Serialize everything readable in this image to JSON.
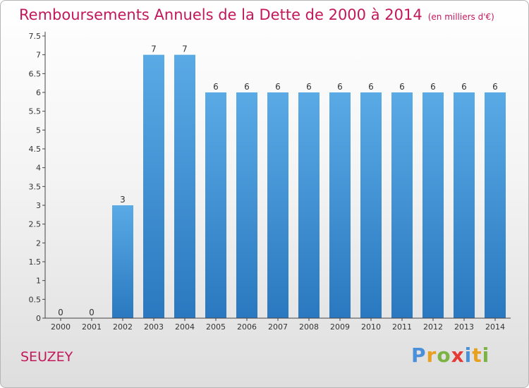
{
  "header": {
    "title": "Remboursements Annuels de la Dette de 2000 à 2014",
    "unit": "(en milliers d'€)"
  },
  "footer": {
    "commune": "SEUZEY",
    "logo_letters": [
      "P",
      "r",
      "o",
      "x",
      "i",
      "t",
      "i"
    ],
    "logo_colors": [
      "#4a90d9",
      "#e8a020",
      "#7cb342",
      "#e53935",
      "#4a90d9",
      "#e8a020",
      "#7cb342"
    ]
  },
  "colors": {
    "bar_top": "#5aaae6",
    "bar_bottom": "#2a78bf",
    "title": "#c2185b"
  },
  "chart_data": {
    "type": "bar",
    "title": "Remboursements Annuels de la Dette de 2000 à 2014",
    "categories": [
      "2000",
      "2001",
      "2002",
      "2003",
      "2004",
      "2005",
      "2006",
      "2007",
      "2008",
      "2009",
      "2010",
      "2011",
      "2012",
      "2013",
      "2014"
    ],
    "values": [
      0,
      0,
      3,
      7,
      7,
      6,
      6,
      6,
      6,
      6,
      6,
      6,
      6,
      6,
      6
    ],
    "value_labels": [
      "0",
      "0",
      "3",
      "7",
      "7",
      "6",
      "6",
      "6",
      "6",
      "6",
      "6",
      "6",
      "6",
      "6",
      "6"
    ],
    "y_ticks": [
      0,
      0.5,
      1,
      1.5,
      2,
      2.5,
      3,
      3.5,
      4,
      4.5,
      5,
      5.5,
      6,
      6.5,
      7,
      7.5
    ],
    "y_tick_labels": [
      "0",
      "0.5",
      "1",
      "1.5",
      "2",
      "2.5",
      "3",
      "3.5",
      "4",
      "4.5",
      "5",
      "5.5",
      "6",
      "6.5",
      "7",
      "7.5"
    ],
    "ylim": [
      0,
      7.5
    ],
    "xlabel": "",
    "ylabel": "",
    "grid": false,
    "legend": "none"
  }
}
